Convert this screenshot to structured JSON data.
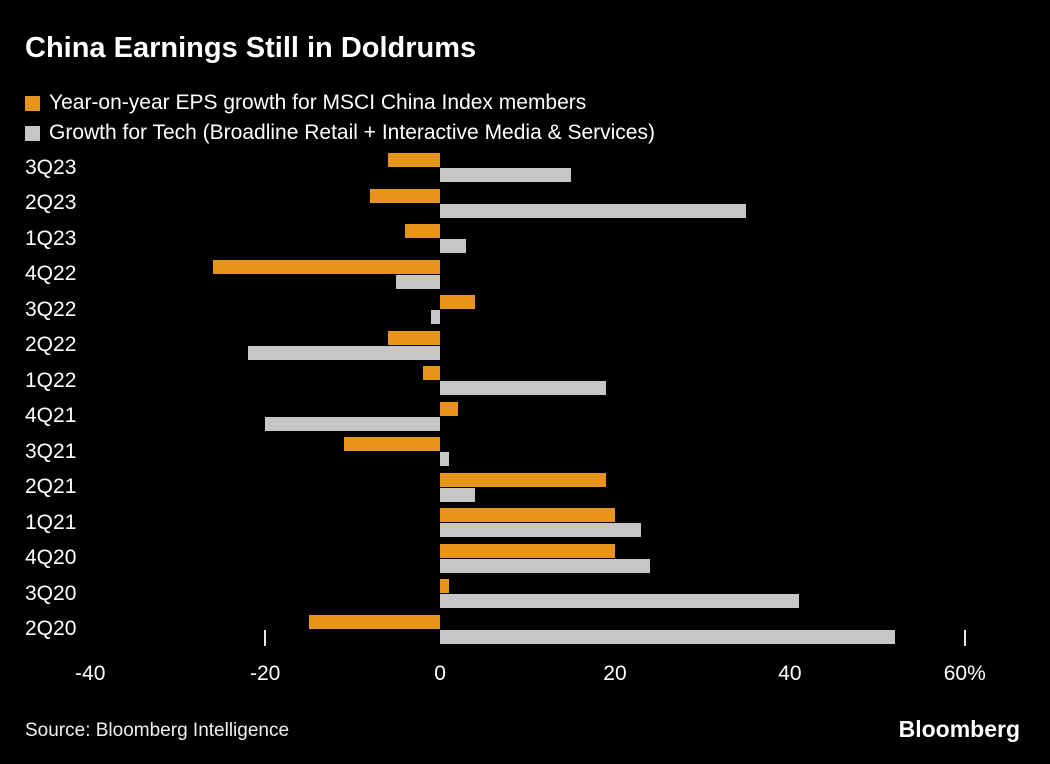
{
  "title": "China Earnings Still in Doldrums",
  "source": "Source: Bloomberg Intelligence",
  "logo": "Bloomberg",
  "colors": {
    "background": "#000000",
    "text": "#ffffff",
    "orange": "#E8931C",
    "gray": "#C6C6C6"
  },
  "legend": [
    {
      "label": "Year-on-year EPS growth for MSCI China Index members",
      "color": "#E8931C"
    },
    {
      "label": "Growth for Tech (Broadline Retail + Interactive Media & Services)",
      "color": "#C6C6C6"
    }
  ],
  "chart_data": {
    "type": "bar",
    "orientation": "horizontal",
    "title": "China Earnings Still in Doldrums",
    "categories": [
      "3Q23",
      "2Q23",
      "1Q23",
      "4Q22",
      "3Q22",
      "2Q22",
      "1Q22",
      "4Q21",
      "3Q21",
      "2Q21",
      "1Q21",
      "4Q20",
      "3Q20",
      "2Q20"
    ],
    "series": [
      {
        "name": "Year-on-year EPS growth for MSCI China Index members",
        "color": "#E8931C",
        "values": [
          -6,
          -8,
          -4,
          -26,
          4,
          -6,
          -2,
          2,
          -11,
          19,
          20,
          20,
          1,
          -15
        ]
      },
      {
        "name": "Growth for Tech (Broadline Retail + Interactive Media & Services)",
        "color": "#C6C6C6",
        "values": [
          15,
          35,
          3,
          -5,
          -1,
          -22,
          19,
          -20,
          1,
          4,
          23,
          24,
          41,
          52
        ]
      }
    ],
    "axis": {
      "min": -40.6,
      "max": 64.6,
      "unit": "%",
      "ticks": [
        {
          "value": -40,
          "label": "-40"
        },
        {
          "value": -20,
          "label": "-20"
        },
        {
          "value": 0,
          "label": "0"
        },
        {
          "value": 20,
          "label": "20"
        },
        {
          "value": 40,
          "label": "40"
        },
        {
          "value": 60,
          "label": "60%"
        }
      ],
      "tick_marks": [
        -20,
        60
      ]
    },
    "grid": false,
    "legend_position": "top"
  }
}
